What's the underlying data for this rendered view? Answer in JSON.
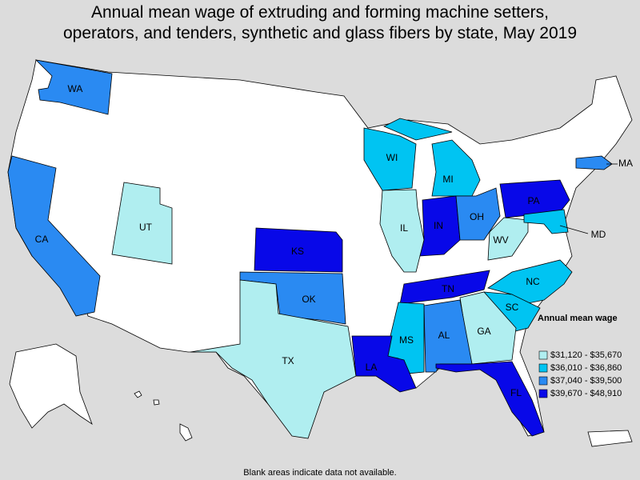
{
  "title_lines": [
    "Annual mean wage of extruding and forming machine setters,",
    "operators, and tenders, synthetic and glass fibers by state, May 2019"
  ],
  "legend": {
    "title": "Annual mean wage",
    "items": [
      {
        "label": "$31,120 - $35,670",
        "color": "#b0eef0"
      },
      {
        "label": "$36,010 - $36,860",
        "color": "#00c4f2"
      },
      {
        "label": "$37,040 - $39,500",
        "color": "#2a8af2"
      },
      {
        "label": "$39,670 - $48,910",
        "color": "#0808e8"
      }
    ]
  },
  "states": [
    {
      "label": "WA",
      "bin": 2
    },
    {
      "label": "CA",
      "bin": 2
    },
    {
      "label": "UT",
      "bin": 0
    },
    {
      "label": "KS",
      "bin": 3
    },
    {
      "label": "OK",
      "bin": 2
    },
    {
      "label": "TX",
      "bin": 0
    },
    {
      "label": "IL",
      "bin": 0
    },
    {
      "label": "WI",
      "bin": 1
    },
    {
      "label": "MI",
      "bin": 1
    },
    {
      "label": "IN",
      "bin": 3
    },
    {
      "label": "OH",
      "bin": 2
    },
    {
      "label": "PA",
      "bin": 3
    },
    {
      "label": "WV",
      "bin": 0
    },
    {
      "label": "MD",
      "bin": 1
    },
    {
      "label": "MA",
      "bin": 2
    },
    {
      "label": "NC",
      "bin": 1
    },
    {
      "label": "SC",
      "bin": 1
    },
    {
      "label": "TN",
      "bin": 3
    },
    {
      "label": "GA",
      "bin": 0
    },
    {
      "label": "AL",
      "bin": 2
    },
    {
      "label": "MS",
      "bin": 1
    },
    {
      "label": "LA",
      "bin": 3
    },
    {
      "label": "FL",
      "bin": 3
    }
  ],
  "note": "Blank areas indicate data not available."
}
